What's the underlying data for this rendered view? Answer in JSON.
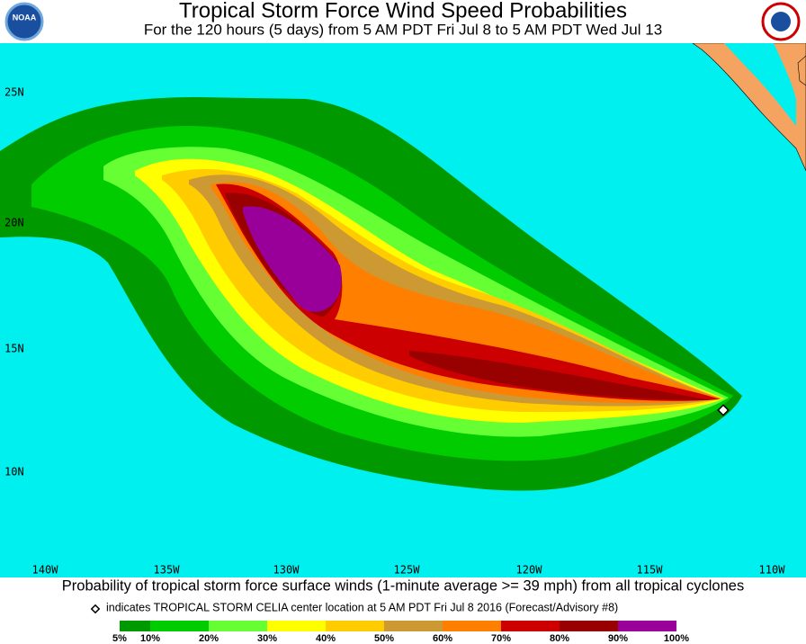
{
  "header": {
    "title": "Tropical Storm Force Wind Speed Probabilities",
    "subtitle": "For the 120 hours (5 days) from 5 AM PDT Fri Jul 8 to 5 AM PDT Wed Jul 13",
    "logo_text": "NOAA"
  },
  "map": {
    "latitude_labels": [
      "25N",
      "20N",
      "15N",
      "10N"
    ],
    "longitude_labels": [
      "140W",
      "135W",
      "130W",
      "125W",
      "120W",
      "115W",
      "110W"
    ]
  },
  "footer": {
    "caption": "Probability of tropical storm force surface winds (1-minute average >= 39 mph) from all tropical cyclones",
    "marker_note": "indicates TROPICAL STORM CELIA center location at 5 AM PDT Fri Jul 8 2016 (Forecast/Advisory #8)"
  },
  "legend": {
    "labels": [
      "5%",
      "10%",
      "20%",
      "30%",
      "40%",
      "50%",
      "60%",
      "70%",
      "80%",
      "90%",
      "100%"
    ],
    "colors": [
      "#009900",
      "#00cc00",
      "#66ff33",
      "#ffff00",
      "#ffcc00",
      "#cc9933",
      "#ff8000",
      "#cc0000",
      "#990000",
      "#990099"
    ]
  }
}
